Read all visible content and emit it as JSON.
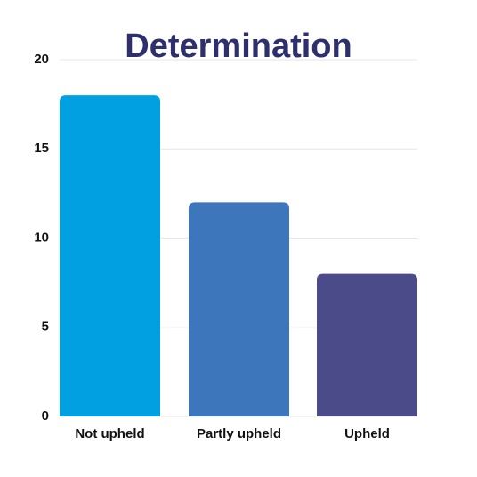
{
  "chart_data": {
    "type": "bar",
    "title": "Determination",
    "categories": [
      "Not upheld",
      "Partly upheld",
      "Upheld"
    ],
    "values": [
      18,
      12,
      8
    ],
    "colors": [
      "#00a0e1",
      "#3e76bc",
      "#4c4b8a"
    ],
    "ylim": [
      0,
      20
    ],
    "yticks": [
      0,
      5,
      10,
      15,
      20
    ],
    "grid": true
  }
}
